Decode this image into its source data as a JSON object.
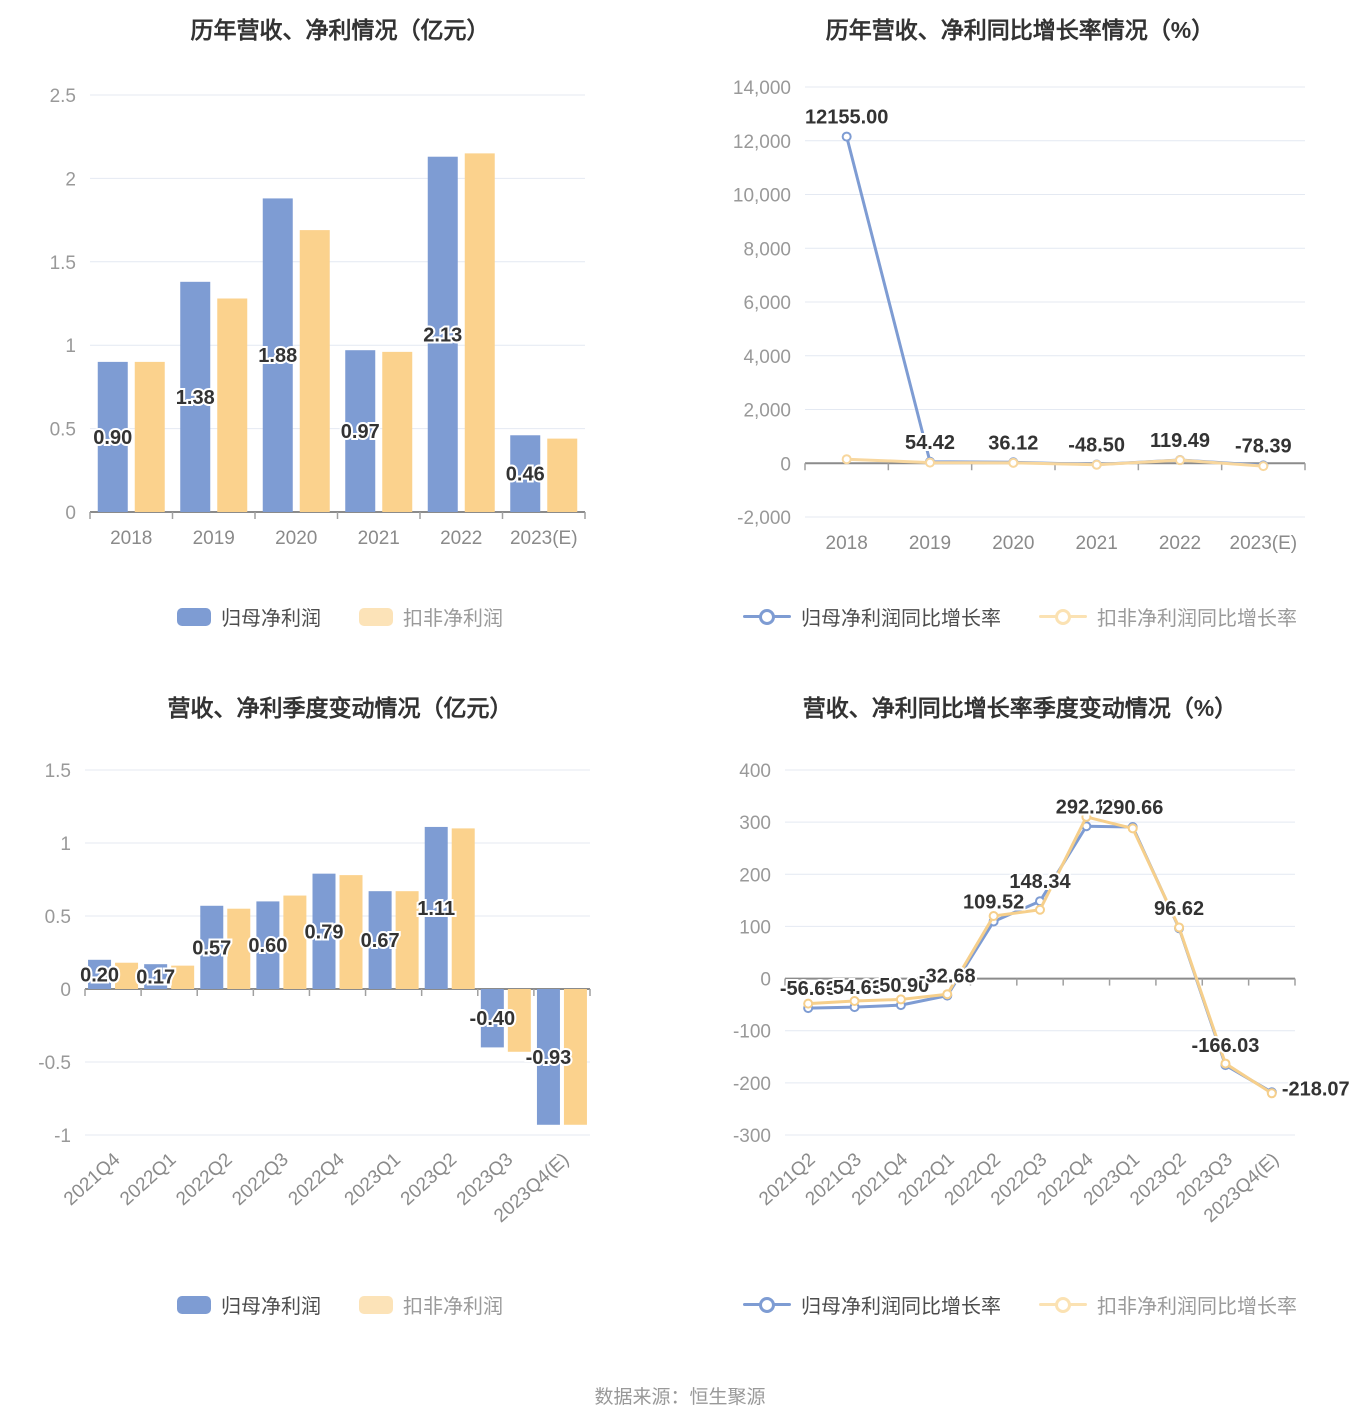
{
  "page": {
    "footer": "数据来源：恒生聚源",
    "background": "#ffffff"
  },
  "colors": {
    "grid": "#e4e9f2",
    "zero_axis": "#8b8b8b",
    "tick": "#a0a0a0",
    "axis_label": "#999999",
    "category_label": "#8a8a8a",
    "value_label": "#333333",
    "value_label_halo": "#ffffff",
    "legend_label_primary": "#4d4d4d",
    "legend_label_secondary": "#9a9a9a"
  },
  "chart_data": [
    {
      "type": "bar",
      "title": "历年营收、净利情况（亿元）",
      "categories": [
        "2018",
        "2019",
        "2020",
        "2021",
        "2022",
        "2023(E)"
      ],
      "series": [
        {
          "name": "归母净利润",
          "color": "#7e9cd3",
          "legend_color": "#7e9cd3",
          "values": [
            0.9,
            1.38,
            1.88,
            0.97,
            2.13,
            0.46
          ],
          "value_labels": [
            "0.90",
            "1.38",
            "1.88",
            "0.97",
            "2.13",
            "0.46"
          ]
        },
        {
          "name": "扣非净利润",
          "color": "#fbd28d",
          "legend_color": "#fce3b8",
          "values": [
            0.9,
            1.28,
            1.69,
            0.96,
            2.15,
            0.44
          ]
        }
      ],
      "ylim": [
        0,
        2.5
      ],
      "yticks": [
        0,
        0.5,
        1,
        1.5,
        2,
        2.5
      ],
      "ytick_labels": [
        "0",
        "0.5",
        "1",
        "1.5",
        "2",
        "2.5"
      ],
      "grid": true,
      "legend_position": "bottom",
      "x_label_rotate": 0
    },
    {
      "type": "line",
      "title": "历年营收、净利同比增长率情况（%）",
      "categories": [
        "2018",
        "2019",
        "2020",
        "2021",
        "2022",
        "2023(E)"
      ],
      "series": [
        {
          "name": "归母净利润同比增长率",
          "color": "#7e9cd3",
          "legend_color": "#7e9cd3",
          "values": [
            12155.0,
            54.42,
            36.12,
            -48.5,
            119.49,
            -78.39
          ],
          "value_labels": [
            "12155.00",
            "54.42",
            "36.12",
            "-48.50",
            "119.49",
            "-78.39"
          ]
        },
        {
          "name": "扣非净利润同比增长率",
          "color": "#f8d79e",
          "legend_color": "#fbe2b3",
          "values": [
            150,
            25,
            15,
            -55,
            115,
            -105
          ]
        }
      ],
      "ylim": [
        -2000,
        14000
      ],
      "yticks": [
        -2000,
        0,
        2000,
        4000,
        6000,
        8000,
        10000,
        12000,
        14000
      ],
      "ytick_labels": [
        "-2,000",
        "0",
        "2,000",
        "4,000",
        "6,000",
        "8,000",
        "10,000",
        "12,000",
        "14,000"
      ],
      "grid": true,
      "legend_position": "bottom",
      "x_label_rotate": 0
    },
    {
      "type": "bar",
      "title": "营收、净利季度变动情况（亿元）",
      "categories": [
        "2021Q4",
        "2022Q1",
        "2022Q2",
        "2022Q3",
        "2022Q4",
        "2023Q1",
        "2023Q2",
        "2023Q3",
        "2023Q4(E)"
      ],
      "series": [
        {
          "name": "归母净利润",
          "color": "#7e9cd3",
          "legend_color": "#7e9cd3",
          "values": [
            0.2,
            0.17,
            0.57,
            0.6,
            0.79,
            0.67,
            1.11,
            -0.4,
            -0.93
          ],
          "value_labels": [
            "0.20",
            "0.17",
            "0.57",
            "0.60",
            "0.79",
            "0.67",
            "1.11",
            "-0.40",
            "-0.93"
          ]
        },
        {
          "name": "扣非净利润",
          "color": "#fbd28d",
          "legend_color": "#fce3b8",
          "values": [
            0.18,
            0.16,
            0.55,
            0.64,
            0.78,
            0.67,
            1.1,
            -0.43,
            -0.93
          ]
        }
      ],
      "ylim": [
        -1,
        1.5
      ],
      "yticks": [
        -1,
        -0.5,
        0,
        0.5,
        1,
        1.5
      ],
      "ytick_labels": [
        "-1",
        "-0.5",
        "0",
        "0.5",
        "1",
        "1.5"
      ],
      "grid": true,
      "legend_position": "bottom",
      "x_label_rotate": 42
    },
    {
      "type": "line",
      "title": "营收、净利同比增长率季度变动情况（%）",
      "categories": [
        "2021Q2",
        "2021Q3",
        "2021Q4",
        "2022Q1",
        "2022Q2",
        "2022Q3",
        "2022Q4",
        "2023Q1",
        "2023Q2",
        "2023Q3",
        "2023Q4(E)"
      ],
      "series": [
        {
          "name": "归母净利润同比增长率",
          "color": "#7e9cd3",
          "legend_color": "#7e9cd3",
          "values": [
            -56.6,
            -54.69,
            -50.9,
            -32.68,
            109.52,
            148.34,
            292.12,
            290.66,
            96.62,
            -166.03,
            -218.07
          ],
          "value_labels": [
            "-56.60",
            "-54.69",
            "-50.90",
            "-32.68",
            "109.52",
            "148.34",
            "292.12",
            "290.66",
            "96.62",
            "-166.03",
            "-218.07"
          ]
        },
        {
          "name": "扣非净利润同比增长率",
          "color": "#f6cf8b",
          "legend_color": "#fbe2b3",
          "values": [
            -48,
            -43,
            -40,
            -30,
            120,
            132,
            310,
            288,
            98,
            -163,
            -220
          ]
        }
      ],
      "ylim": [
        -300,
        400
      ],
      "yticks": [
        -300,
        -200,
        -100,
        0,
        100,
        200,
        300,
        400
      ],
      "ytick_labels": [
        "-300",
        "-200",
        "-100",
        "0",
        "100",
        "200",
        "300",
        "400"
      ],
      "label_offsets": {
        "10": {
          "dx": 10,
          "dy": 3,
          "anchor": "start"
        }
      },
      "grid": true,
      "legend_position": "bottom",
      "x_label_rotate": 42
    }
  ]
}
